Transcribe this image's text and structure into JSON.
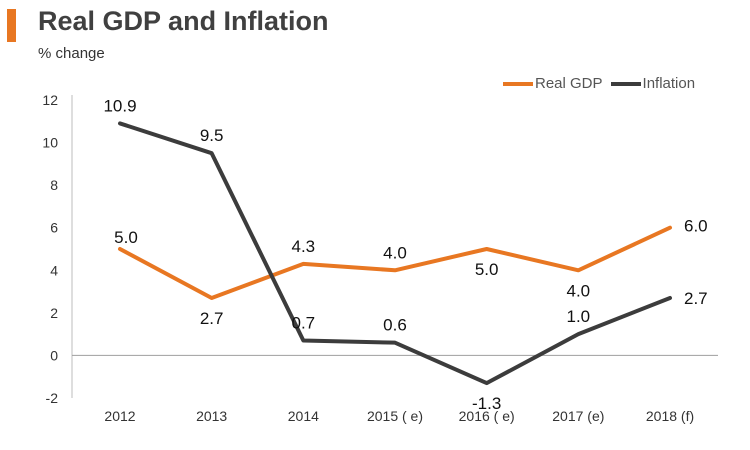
{
  "header": {
    "title": "Real GDP and Inflation",
    "subtitle": "% change",
    "accent_color": "#e87722"
  },
  "chart_data": {
    "type": "line",
    "title": "Real GDP and Inflation",
    "ylabel": "% change",
    "xlabel": "",
    "categories": [
      "2012",
      "2013",
      "2014",
      "2015 ( e)",
      "2016 ( e)",
      "2017 (e)",
      "2018 (f)"
    ],
    "ylim": [
      -2,
      12
    ],
    "yticks": [
      12,
      10,
      8,
      6,
      4,
      2,
      0,
      -2
    ],
    "legend_position": "top-right",
    "series": [
      {
        "name": "Real GDP",
        "color": "#e87722",
        "values": [
          5.0,
          2.7,
          4.3,
          4.0,
          5.0,
          4.0,
          6.0
        ],
        "labels": [
          "5.0",
          "2.7",
          "4.3",
          "4.0",
          "5.0",
          "4.0",
          "6.0"
        ]
      },
      {
        "name": "Inflation",
        "color": "#3c3c3c",
        "values": [
          10.9,
          9.5,
          0.7,
          0.6,
          -1.3,
          1.0,
          2.7
        ],
        "labels": [
          "10.9",
          "9.5",
          "0.7",
          "0.6",
          "-1.3",
          "1.0",
          "2.7"
        ]
      }
    ]
  }
}
